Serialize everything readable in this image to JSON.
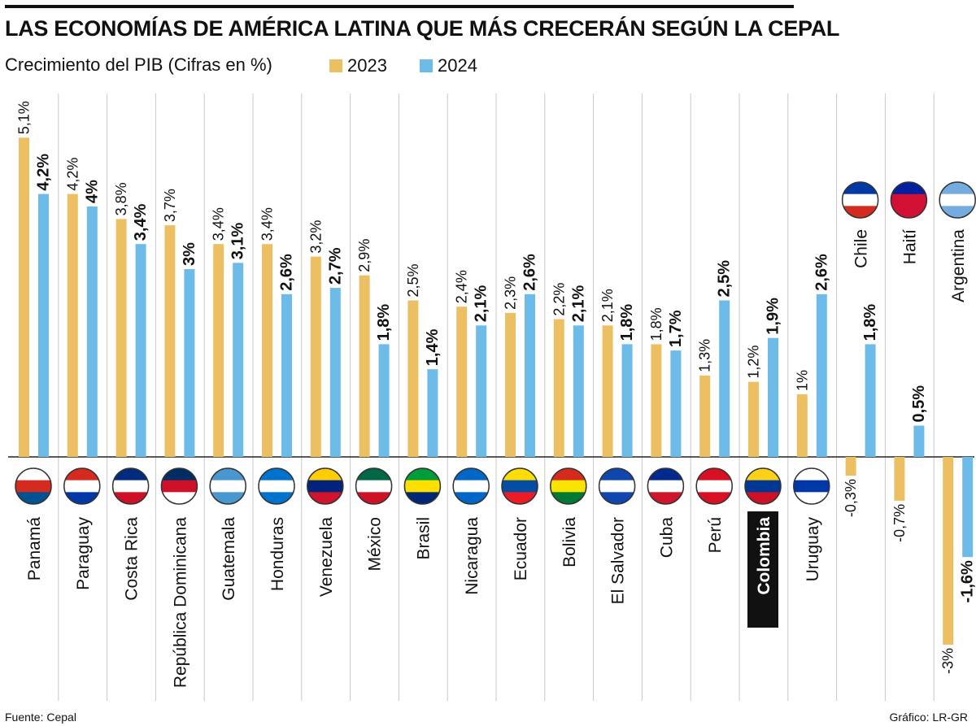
{
  "header": {
    "title": "LAS ECONOMÍAS DE  AMÉRICA LATINA QUE MÁS CRECERÁN SEGÚN LA CEPAL",
    "subtitle": "Crecimiento del PIB (Cifras en %)"
  },
  "legend": [
    {
      "label": "2023",
      "color": "#ecc062"
    },
    {
      "label": "2024",
      "color": "#6cbbe8"
    }
  ],
  "footer": {
    "source": "Fuente: Cepal",
    "credit": "Gráfico: LR-GR"
  },
  "highlight_country": "Colombia",
  "chart_data": {
    "type": "bar",
    "title": "LAS ECONOMÍAS DE  AMÉRICA LATINA QUE MÁS CRECERÁN SEGÚN LA CEPAL",
    "ylabel": "Crecimiento del PIB (Cifras en %)",
    "categories": [
      "Panamá",
      "Paraguay",
      "Costa Rica",
      "República Dominicana",
      "Guatemala",
      "Honduras",
      "Venezuela",
      "México",
      "Brasil",
      "Nicaragua",
      "Ecuador",
      "Bolivia",
      "El Salvador",
      "Cuba",
      "Perú",
      "Colombia",
      "Uruguay",
      "Chile",
      "Haití",
      "Argentina"
    ],
    "series": [
      {
        "name": "2023",
        "color": "#ecc062",
        "values": [
          5.1,
          4.2,
          3.8,
          3.7,
          3.4,
          3.4,
          3.2,
          2.9,
          2.5,
          2.4,
          2.3,
          2.2,
          2.1,
          1.8,
          1.3,
          1.2,
          1.0,
          -0.3,
          -0.7,
          -3.0
        ],
        "labels": [
          "5,1%",
          "4,2%",
          "3,8%",
          "3,7%",
          "3,4%",
          "3,4%",
          "3,2%",
          "2,9%",
          "2,5%",
          "2,4%",
          "2,3%",
          "2,2%",
          "2,1%",
          "1,8%",
          "1,3%",
          "1,2%",
          "1%",
          "-0,3%",
          "-0,7%",
          "-3%"
        ]
      },
      {
        "name": "2024",
        "color": "#6cbbe8",
        "values": [
          4.2,
          4.0,
          3.4,
          3.0,
          3.1,
          2.6,
          2.7,
          1.8,
          1.4,
          2.1,
          2.6,
          2.1,
          1.8,
          1.7,
          2.5,
          1.9,
          2.6,
          1.8,
          0.5,
          -1.6
        ],
        "labels": [
          "4,2%",
          "4%",
          "3,4%",
          "3%",
          "3,1%",
          "2,6%",
          "2,7%",
          "1,8%",
          "1,4%",
          "2,1%",
          "2,6%",
          "2,1%",
          "1,8%",
          "1,7%",
          "2,5%",
          "1,9%",
          "2,6%",
          "1,8%",
          "0,5%",
          "-1,6%"
        ]
      }
    ],
    "ylim": [
      -3.2,
      5.1
    ],
    "grid": true,
    "legend_position": "top"
  }
}
